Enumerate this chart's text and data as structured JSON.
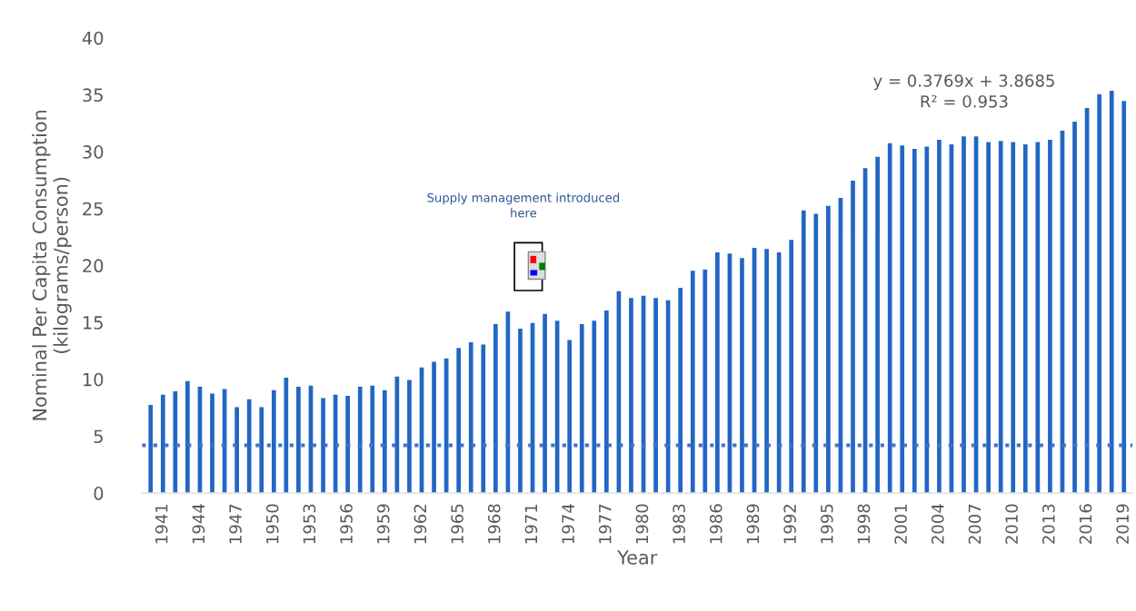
{
  "chart_data": {
    "type": "bar",
    "xlabel": "Year",
    "ylabel": "Nominal Per Capita Consumption\n(kilograms/person)",
    "categories": [
      null,
      "1941",
      null,
      null,
      "1944",
      null,
      null,
      "1947",
      null,
      null,
      "1950",
      null,
      null,
      "1953",
      null,
      null,
      "1956",
      null,
      null,
      "1959",
      null,
      null,
      "1962",
      null,
      null,
      "1965",
      null,
      null,
      "1968",
      null,
      null,
      "1971",
      null,
      null,
      "1974",
      null,
      null,
      "1977",
      null,
      null,
      "1980",
      null,
      null,
      "1983",
      null,
      null,
      "1986",
      null,
      null,
      "1989",
      null,
      null,
      "1992",
      null,
      null,
      "1995",
      null,
      null,
      "1998",
      null,
      null,
      "2001",
      null,
      null,
      "2004",
      null,
      null,
      "2007",
      null,
      null,
      "2010",
      null,
      null,
      "2013",
      null,
      null,
      "2016",
      null,
      null,
      "2019"
    ],
    "series": [
      {
        "color": "#2266c4",
        "values": [
          7.8,
          8.7,
          9.0,
          9.9,
          9.4,
          8.8,
          9.2,
          7.6,
          8.3,
          7.6,
          9.1,
          10.2,
          9.4,
          9.5,
          8.4,
          8.7,
          8.6,
          9.4,
          9.5,
          9.1,
          10.3,
          10.0,
          11.1,
          11.6,
          11.9,
          12.8,
          13.3,
          13.1,
          14.9,
          16.0,
          14.5,
          15.0,
          15.8,
          15.2,
          13.5,
          14.9,
          15.2,
          16.1,
          17.8,
          17.2,
          17.4,
          17.2,
          17.0,
          18.1,
          19.6,
          19.7,
          21.2,
          21.1,
          20.7,
          21.6,
          21.5,
          21.2,
          22.3,
          24.9,
          24.6,
          25.3,
          26.0,
          27.5,
          28.6,
          29.6,
          30.8,
          30.6,
          30.3,
          30.5,
          31.1,
          30.7,
          31.4,
          31.4,
          30.9,
          31.0,
          30.9,
          30.7,
          30.9,
          31.1,
          31.9,
          32.7,
          33.9,
          35.1,
          35.4,
          34.5
        ]
      }
    ],
    "ylim": [
      0,
      40
    ],
    "yticks": [
      0,
      5,
      10,
      15,
      20,
      25,
      30,
      35,
      40
    ],
    "ref_lines": [
      {
        "axis": "y",
        "value": 4.2,
        "color": "#4472c4",
        "line_style": "dotted"
      }
    ],
    "annotations": [
      "Supply management introduced\nhere",
      "y = 0.3769x + 3.8685\nR² = 0.953"
    ],
    "grid": false,
    "legend": false
  }
}
